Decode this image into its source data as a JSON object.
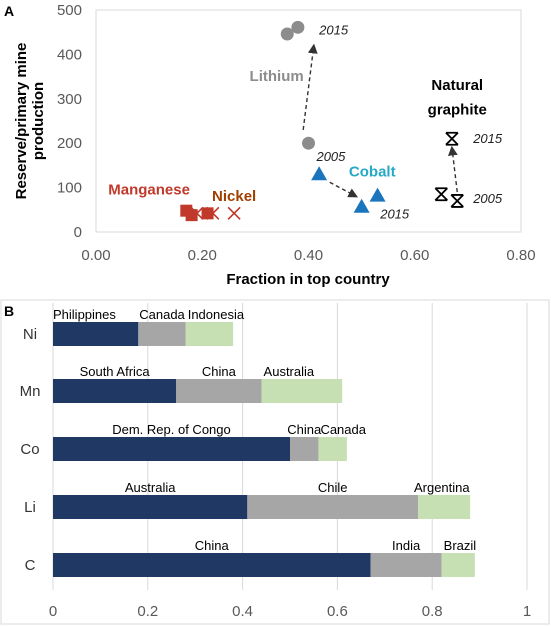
{
  "panels": {
    "a": "A",
    "b": "B"
  },
  "chart_data": [
    {
      "type": "scatter",
      "panel": "A",
      "xlabel": "Fraction in top country",
      "ylabel": "Reserve/primary mine production",
      "xlim": [
        0,
        0.8
      ],
      "ylim": [
        0,
        500
      ],
      "xticks": [
        "0.00",
        "0.20",
        "0.40",
        "0.60",
        "0.80"
      ],
      "yticks": [
        "0",
        "100",
        "200",
        "300",
        "400",
        "500"
      ],
      "grid": false,
      "series": [
        {
          "name": "Lithium",
          "color": "#8c8c8c",
          "marker": "circle",
          "points": [
            {
              "x": 0.4,
              "y": 200
            },
            {
              "x": 0.36,
              "y": 446
            },
            {
              "x": 0.38,
              "y": 461
            }
          ],
          "arrow": {
            "from": [
              0.39,
              230
            ],
            "to": [
              0.41,
              420
            ]
          }
        },
        {
          "name": "Cobalt",
          "color": "#1a75bc",
          "marker": "triangle",
          "points": [
            {
              "x": 0.42,
              "y": 130
            },
            {
              "x": 0.53,
              "y": 82
            },
            {
              "x": 0.5,
              "y": 57
            }
          ],
          "arrow": {
            "from": [
              0.44,
              112
            ],
            "to": [
              0.49,
              80
            ]
          }
        },
        {
          "name": "Natural graphite",
          "color": "#000000",
          "marker": "star",
          "points": [
            {
              "x": 0.65,
              "y": 85
            },
            {
              "x": 0.68,
              "y": 70
            },
            {
              "x": 0.67,
              "y": 210
            }
          ],
          "arrow": {
            "from": [
              0.68,
              90
            ],
            "to": [
              0.67,
              190
            ]
          }
        },
        {
          "name": "Manganese",
          "color": "#c0392b",
          "marker": "square",
          "points": [
            {
              "x": 0.17,
              "y": 48
            },
            {
              "x": 0.18,
              "y": 38
            },
            {
              "x": 0.21,
              "y": 42
            }
          ]
        },
        {
          "name": "Nickel",
          "color": "#c0392b",
          "marker": "x",
          "points": [
            {
              "x": 0.19,
              "y": 42
            },
            {
              "x": 0.22,
              "y": 42
            },
            {
              "x": 0.26,
              "y": 42
            }
          ]
        }
      ],
      "labels": [
        {
          "text": "Lithium",
          "color": "#8c8c8c",
          "x": 0.34,
          "y": 340
        },
        {
          "text": "Cobalt",
          "color": "#27a9c6",
          "x": 0.52,
          "y": 125
        },
        {
          "text": "Natural",
          "color": "#000000",
          "x": 0.68,
          "y": 320
        },
        {
          "text": "graphite",
          "color": "#000000",
          "x": 0.68,
          "y": 265
        },
        {
          "text": "Manganese",
          "color": "#c0392b",
          "x": 0.1,
          "y": 85
        },
        {
          "text": "Nickel",
          "color": "#a04000",
          "x": 0.26,
          "y": 70
        }
      ],
      "year_labels": [
        {
          "text": "2015",
          "x": 0.42,
          "y": 445
        },
        {
          "text": "2005",
          "x": 0.415,
          "y": 160
        },
        {
          "text": "2015",
          "x": 0.535,
          "y": 30
        },
        {
          "text": "2015",
          "x": 0.71,
          "y": 200
        },
        {
          "text": "2005",
          "x": 0.71,
          "y": 65
        }
      ]
    },
    {
      "type": "bar",
      "panel": "B",
      "orientation": "horizontal",
      "stacked": true,
      "categories": [
        "Ni",
        "Mn",
        "Co",
        "Li",
        "C"
      ],
      "xlim": [
        0,
        1
      ],
      "xticks": [
        "0",
        "0.2",
        "0.4",
        "0.6",
        "0.8",
        "1"
      ],
      "grid": true,
      "series": [
        {
          "color": "#1f3864",
          "values": [
            0.18,
            0.26,
            0.5,
            0.41,
            0.67
          ]
        },
        {
          "color": "#a6a6a6",
          "values": [
            0.1,
            0.18,
            0.06,
            0.36,
            0.15
          ]
        },
        {
          "color": "#c6e0b4",
          "values": [
            0.1,
            0.17,
            0.06,
            0.11,
            0.07
          ]
        }
      ],
      "bar_labels": [
        [
          "Philippines",
          "Canada",
          "Indonesia"
        ],
        [
          "South Africa",
          "China",
          "Australia"
        ],
        [
          "Dem. Rep. of Congo",
          "China",
          "Canada"
        ],
        [
          "Australia",
          "Chile",
          "Argentina"
        ],
        [
          "China",
          "India",
          "Brazil"
        ]
      ]
    }
  ]
}
